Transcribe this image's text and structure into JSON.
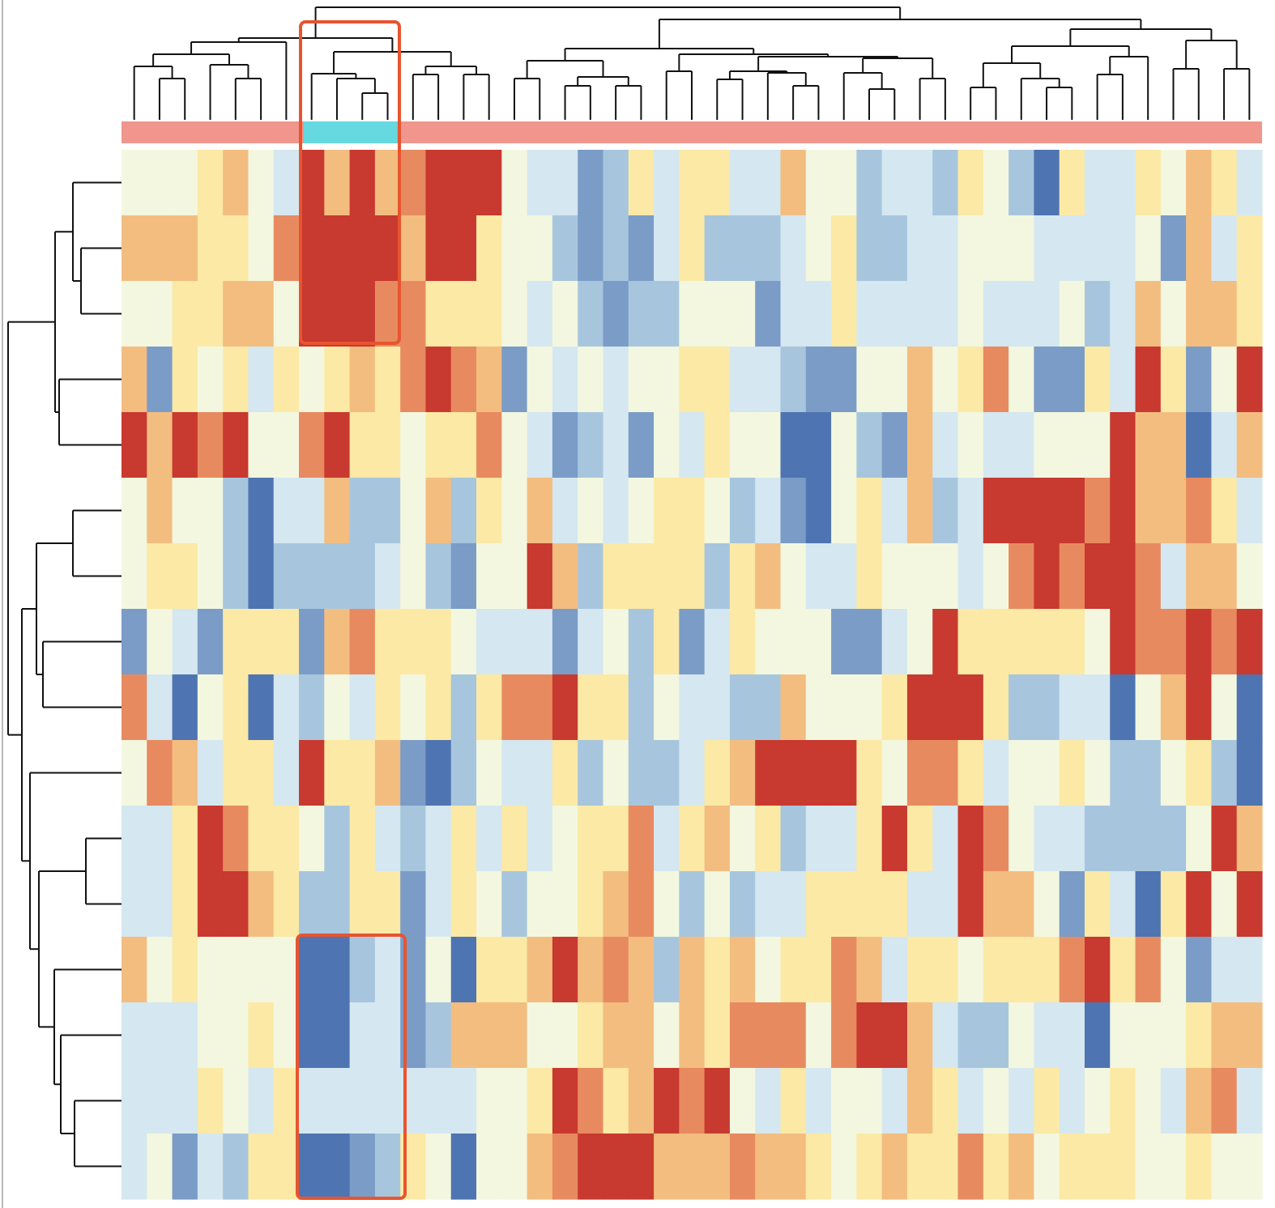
{
  "chart_data": {
    "type": "heatmap",
    "zlim": [
      -2,
      2
    ],
    "colors": [
      "#4e74b2",
      "#7a9cc7",
      "#a7c6de",
      "#d5e7f0",
      "#f3f7df",
      "#fbe9a5",
      "#f3bd80",
      "#e88a60",
      "#c8392f"
    ],
    "values": [
      [
        0,
        0,
        0,
        0.5,
        1,
        0,
        -0.5,
        2,
        1,
        2,
        1,
        1.5,
        2,
        2,
        2,
        0,
        -0.5,
        -0.5,
        -1.5,
        -1,
        0.5,
        -0.5,
        0.5,
        0.5,
        -0.5,
        -0.5,
        1,
        0,
        0,
        -1,
        -0.5,
        -0.5,
        -1,
        0.5,
        0,
        -1,
        -2,
        0.5,
        -0.5,
        -0.5,
        0.5,
        0,
        1,
        0.5,
        -0.5
      ],
      [
        1,
        1,
        1,
        0.5,
        0.5,
        0,
        1.5,
        2,
        2,
        2,
        2,
        1,
        2,
        2,
        0.5,
        0,
        0,
        -1,
        -1.5,
        -1,
        -1.5,
        -0.5,
        0.5,
        -1,
        -1,
        -1,
        -0.5,
        0,
        0.5,
        -1,
        -1,
        -0.5,
        -0.5,
        0,
        0,
        0,
        -0.5,
        -0.5,
        -0.5,
        -0.5,
        0,
        -1.5,
        1,
        -0.5,
        0.5
      ],
      [
        0,
        0,
        0.5,
        0.5,
        1,
        1,
        0,
        2,
        2,
        2,
        1.5,
        1.5,
        0.5,
        0.5,
        0.5,
        0,
        -0.5,
        0,
        -1,
        -1.5,
        -1,
        -1,
        0,
        0,
        0,
        -1.5,
        -0.5,
        -0.5,
        0.5,
        -0.5,
        -0.5,
        -0.5,
        -0.5,
        0,
        -0.5,
        -0.5,
        -0.5,
        0,
        -1,
        -0.5,
        1,
        0,
        1,
        1,
        0.5
      ],
      [
        1,
        -1.5,
        0.5,
        0,
        0.5,
        -0.5,
        0.5,
        0,
        0.5,
        1,
        0.5,
        1.5,
        2,
        1.5,
        1,
        -1.5,
        0,
        -0.5,
        0,
        -0.5,
        0,
        0,
        0.5,
        0.5,
        -0.5,
        -0.5,
        -1,
        -1.5,
        -1.5,
        0,
        0,
        1,
        0,
        0.5,
        1.5,
        0,
        -1.5,
        -1.5,
        0.5,
        -0.5,
        2,
        0.5,
        -1.5,
        0,
        2
      ],
      [
        2,
        1,
        2,
        1.5,
        2,
        0,
        0,
        1.5,
        2,
        0.5,
        0.5,
        0,
        0.5,
        0.5,
        1.5,
        0,
        -0.5,
        -1.5,
        -1,
        -0.5,
        -1.5,
        0,
        -0.5,
        0.5,
        0,
        0,
        -2,
        -2,
        0,
        -1,
        -1.5,
        1,
        -0.5,
        0,
        -0.5,
        -0.5,
        0,
        0,
        0,
        2,
        1,
        1,
        -2,
        -0.5,
        1
      ],
      [
        0,
        1,
        0,
        0,
        -1,
        -2,
        -0.5,
        -0.5,
        1,
        -1,
        -1,
        0,
        1,
        -1,
        0.5,
        0,
        1,
        -0.5,
        0,
        -0.5,
        0,
        0.5,
        0.5,
        0,
        -1,
        -0.5,
        -1.5,
        -2,
        0,
        0.5,
        -0.5,
        1,
        -1,
        -0.5,
        2,
        2,
        2,
        2,
        1.5,
        2,
        1,
        1,
        1.5,
        0.5,
        -0.5
      ],
      [
        0,
        0.5,
        0.5,
        0,
        -1,
        -2,
        -1,
        -1,
        -1,
        -1,
        -0.5,
        0,
        -1,
        -1.5,
        0,
        0,
        2,
        1,
        -1,
        0.5,
        0.5,
        0.5,
        0.5,
        -1,
        0.5,
        1,
        0,
        -0.5,
        -0.5,
        0.5,
        0,
        0,
        0,
        -0.5,
        0,
        1.5,
        2,
        1.5,
        2,
        2,
        1.5,
        -0.5,
        1,
        1,
        0
      ],
      [
        -1.5,
        0,
        -0.5,
        -1.5,
        0.5,
        0.5,
        0.5,
        -1.5,
        1,
        1.5,
        0.5,
        0.5,
        0.5,
        0,
        -0.5,
        -0.5,
        -0.5,
        -1.5,
        -0.5,
        0,
        -1,
        0.5,
        -1.5,
        -0.5,
        0.5,
        0,
        0,
        0,
        -1.5,
        -1.5,
        -0.5,
        0,
        2,
        0.5,
        0.5,
        0.5,
        0.5,
        0.5,
        0,
        2,
        1.5,
        1.5,
        2,
        1.5,
        2
      ],
      [
        1.5,
        -0.5,
        -2,
        0,
        0.5,
        -2,
        -0.5,
        -1,
        0,
        -0.5,
        0.5,
        0,
        0.5,
        -1,
        0.5,
        1.5,
        1.5,
        2,
        0.5,
        0.5,
        -1,
        0,
        -0.5,
        -0.5,
        -1,
        -1,
        1,
        0,
        0,
        0,
        0.5,
        2,
        2,
        2,
        0.5,
        -1,
        -1,
        -0.5,
        -0.5,
        -2,
        0,
        1,
        2,
        0,
        -2
      ],
      [
        0,
        1.5,
        1,
        -0.5,
        0.5,
        0.5,
        -0.5,
        2,
        0.5,
        0.5,
        1,
        -1.5,
        -2,
        -1,
        0,
        -0.5,
        -0.5,
        0.5,
        -1,
        0,
        -1,
        -1,
        -0.5,
        0.5,
        1,
        2,
        2,
        2,
        2,
        0.5,
        0,
        1.5,
        1.5,
        0.5,
        -0.5,
        0,
        0,
        0.5,
        0,
        -1,
        -1,
        0,
        0.5,
        -1,
        -2
      ],
      [
        -0.5,
        -0.5,
        0.5,
        2,
        1.5,
        0.5,
        0.5,
        0,
        -1,
        0.5,
        -0.5,
        -1,
        -0.5,
        0.5,
        -0.5,
        0.5,
        -0.5,
        0,
        0.5,
        0.5,
        1.5,
        -0.5,
        0.5,
        1,
        0,
        0.5,
        -1,
        -0.5,
        -0.5,
        0.5,
        2,
        0.5,
        -0.5,
        2,
        1.5,
        0,
        -0.5,
        -0.5,
        -1,
        -1,
        -1,
        -1,
        0,
        2,
        1
      ],
      [
        -0.5,
        -0.5,
        0.5,
        2,
        2,
        1,
        0.5,
        -1,
        -1,
        0.5,
        0.5,
        -1.5,
        -0.5,
        0.5,
        0,
        -1,
        0,
        0,
        0.5,
        1,
        1.5,
        0,
        -1,
        0,
        -1,
        -0.5,
        -0.5,
        0.5,
        0.5,
        0.5,
        0.5,
        -0.5,
        -0.5,
        2,
        1,
        1,
        0,
        -1.5,
        0.5,
        -0.5,
        -2,
        0.5,
        2,
        0,
        2
      ],
      [
        1,
        0,
        0.5,
        0,
        0,
        0,
        0,
        -2,
        -2,
        -1,
        -0.5,
        -1.5,
        0,
        -2,
        0.5,
        0.5,
        1,
        2,
        1,
        1.5,
        1,
        -1,
        1,
        0.5,
        1,
        0,
        0.5,
        0.5,
        1.5,
        1,
        -0.5,
        0.5,
        0.5,
        0,
        0.5,
        0.5,
        0.5,
        1.5,
        2,
        0.5,
        1.5,
        0,
        -1.5,
        -0.5,
        -0.5
      ],
      [
        -0.5,
        -0.5,
        -0.5,
        0,
        0,
        0.5,
        0,
        -2,
        -2,
        -0.5,
        -0.5,
        -1.5,
        -1,
        1,
        1,
        1,
        0,
        0,
        0.5,
        1,
        1,
        0,
        1,
        0.5,
        1.5,
        1.5,
        1.5,
        0,
        1.5,
        2,
        2,
        1,
        -0.5,
        -1,
        -1,
        0,
        -0.5,
        -0.5,
        -2,
        0,
        0,
        0,
        0.5,
        1,
        1
      ],
      [
        -0.5,
        -0.5,
        -0.5,
        0.5,
        0,
        -0.5,
        0.5,
        -0.5,
        -0.5,
        -0.5,
        -0.5,
        -0.5,
        -0.5,
        -0.5,
        0,
        0,
        0.5,
        2,
        1.5,
        0.5,
        1,
        2,
        1.5,
        2,
        0,
        -0.5,
        0.5,
        -0.5,
        0,
        0,
        -0.5,
        1,
        0.5,
        -0.5,
        0,
        -0.5,
        0.5,
        -0.5,
        0,
        0.5,
        0,
        -0.5,
        1,
        1.5,
        -0.5
      ],
      [
        -0.5,
        0,
        -1.5,
        -0.5,
        -1,
        0.5,
        0.5,
        -2,
        -2,
        -1.5,
        -1,
        0.5,
        0,
        -2,
        0,
        0,
        1,
        1.5,
        2,
        2,
        2,
        1,
        1,
        1,
        1.5,
        1,
        1,
        0.5,
        0,
        0.5,
        1,
        0.5,
        0.5,
        1.5,
        0.5,
        1,
        0,
        0.5,
        0.5,
        0.5,
        0,
        0,
        0.5,
        0,
        0
      ]
    ]
  }
}
